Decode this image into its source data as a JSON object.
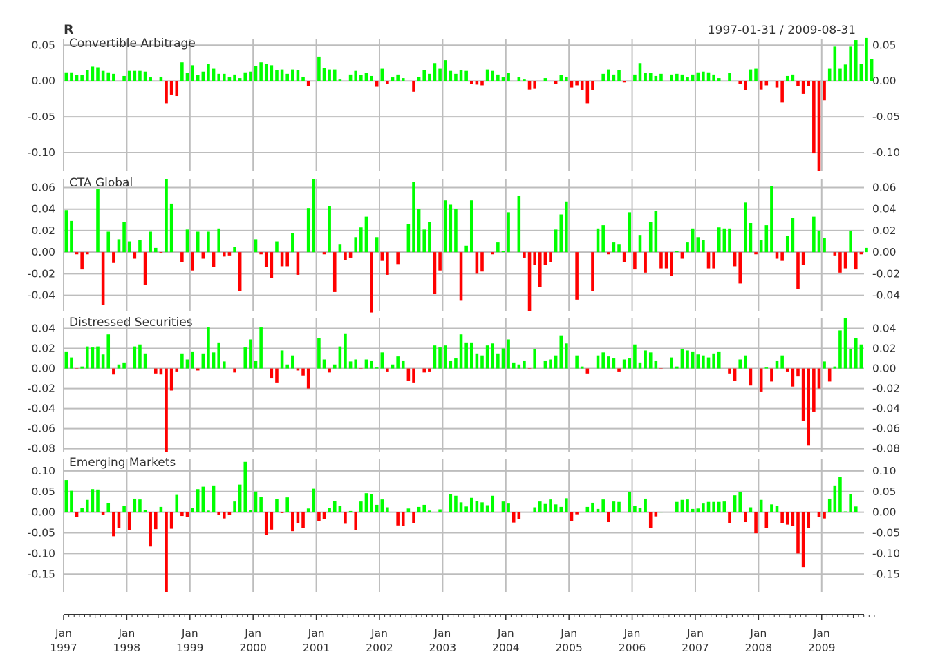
{
  "header": {
    "title": "R",
    "date_range": "1997-01-31 / 2009-08-31"
  },
  "colors": {
    "positive": "#00ff00",
    "negative": "#ff0000",
    "grid": "#bdbdbd",
    "text": "#333333"
  },
  "chart_data": {
    "type": "bar",
    "layout": "stacked-panels",
    "grid": true,
    "x_axis": {
      "ticks": [
        {
          "line1": "Jan",
          "line2": "1997"
        },
        {
          "line1": "Jan",
          "line2": "1998"
        },
        {
          "line1": "Jan",
          "line2": "1999"
        },
        {
          "line1": "Jan",
          "line2": "2000"
        },
        {
          "line1": "Jan",
          "line2": "2001"
        },
        {
          "line1": "Jan",
          "line2": "2002"
        },
        {
          "line1": "Jan",
          "line2": "2003"
        },
        {
          "line1": "Jan",
          "line2": "2004"
        },
        {
          "line1": "Jan",
          "line2": "2005"
        },
        {
          "line1": "Jan",
          "line2": "2006"
        },
        {
          "line1": "Jan",
          "line2": "2007"
        },
        {
          "line1": "Jan",
          "line2": "2008"
        },
        {
          "line1": "Jan",
          "line2": "2009"
        }
      ]
    },
    "series": [
      {
        "name": "Convertible Arbitrage",
        "ylim": [
          -0.125,
          0.058
        ],
        "yticks": [
          {
            "value": 0.05,
            "label": "0.05"
          },
          {
            "value": 0.0,
            "label": "0.00"
          },
          {
            "value": -0.05,
            "label": "-0.05"
          },
          {
            "value": -0.1,
            "label": "-0.10"
          }
        ],
        "values": [
          0.012,
          0.012,
          0.008,
          0.008,
          0.015,
          0.02,
          0.019,
          0.014,
          0.012,
          0.01,
          0.0,
          0.007,
          0.014,
          0.014,
          0.014,
          0.013,
          0.005,
          0.0,
          0.006,
          -0.031,
          -0.019,
          -0.021,
          0.026,
          0.011,
          0.022,
          0.008,
          0.013,
          0.024,
          0.017,
          0.01,
          0.01,
          0.005,
          0.009,
          0.004,
          0.012,
          0.013,
          0.021,
          0.026,
          0.024,
          0.022,
          0.015,
          0.016,
          0.01,
          0.016,
          0.015,
          0.006,
          -0.007,
          0.0,
          0.034,
          0.018,
          0.016,
          0.016,
          0.002,
          0.0,
          0.009,
          0.014,
          0.008,
          0.011,
          0.007,
          -0.008,
          0.017,
          -0.004,
          0.005,
          0.009,
          0.004,
          0.0,
          -0.015,
          0.006,
          0.015,
          0.01,
          0.025,
          0.017,
          0.029,
          0.014,
          0.01,
          0.015,
          0.014,
          -0.004,
          -0.005,
          -0.006,
          0.016,
          0.014,
          0.009,
          0.005,
          0.011,
          0.0,
          0.005,
          0.002,
          -0.012,
          -0.011,
          0.0,
          0.004,
          0.0,
          -0.004,
          0.008,
          0.006,
          -0.009,
          -0.006,
          -0.013,
          -0.031,
          -0.013,
          0.0,
          0.01,
          0.016,
          0.009,
          0.015,
          -0.002,
          0.0,
          0.009,
          0.025,
          0.011,
          0.011,
          0.007,
          0.01,
          0.0,
          0.009,
          0.01,
          0.009,
          0.005,
          0.009,
          0.012,
          0.013,
          0.012,
          0.009,
          0.004,
          0.0,
          0.011,
          0.0,
          -0.004,
          -0.013,
          0.016,
          0.017,
          -0.012,
          -0.006,
          0.0,
          -0.009,
          -0.03,
          0.007,
          0.009,
          -0.007,
          -0.018,
          -0.007,
          -0.101,
          -0.125,
          -0.027,
          0.017,
          0.048,
          0.017,
          0.023,
          0.048,
          0.057,
          0.024,
          0.06,
          0.031
        ]
      },
      {
        "name": "CTA Global",
        "ylim": [
          -0.055,
          0.068
        ],
        "yticks": [
          {
            "value": 0.06,
            "label": "0.06"
          },
          {
            "value": 0.04,
            "label": "0.04"
          },
          {
            "value": 0.02,
            "label": "0.02"
          },
          {
            "value": 0.0,
            "label": "0.00"
          },
          {
            "value": -0.02,
            "label": "-0.02"
          },
          {
            "value": -0.04,
            "label": "-0.04"
          }
        ],
        "values": [
          0.039,
          0.029,
          -0.002,
          -0.016,
          -0.002,
          0.0,
          0.059,
          -0.049,
          0.019,
          -0.01,
          0.012,
          0.028,
          0.01,
          -0.006,
          0.011,
          -0.03,
          0.019,
          0.004,
          -0.001,
          0.068,
          0.045,
          0.0,
          -0.009,
          0.021,
          -0.017,
          0.019,
          -0.006,
          0.019,
          -0.014,
          0.022,
          -0.004,
          -0.003,
          0.005,
          -0.036,
          0.0,
          0.0,
          0.012,
          -0.002,
          -0.014,
          -0.024,
          0.01,
          -0.013,
          -0.013,
          0.018,
          -0.021,
          0.0,
          0.041,
          0.068,
          0.0,
          -0.002,
          0.043,
          -0.037,
          0.007,
          -0.007,
          -0.005,
          0.014,
          0.023,
          0.033,
          -0.056,
          0.014,
          -0.008,
          -0.021,
          0.0,
          -0.011,
          0.0,
          0.026,
          0.065,
          0.04,
          0.021,
          0.028,
          -0.039,
          -0.017,
          0.048,
          0.044,
          0.04,
          -0.045,
          0.006,
          0.048,
          -0.02,
          -0.018,
          0.0,
          -0.002,
          0.009,
          0.001,
          0.037,
          0.0,
          0.052,
          -0.005,
          -0.055,
          -0.012,
          -0.032,
          -0.012,
          -0.009,
          0.021,
          0.035,
          0.047,
          0.0,
          -0.044,
          0.0,
          0.0,
          -0.036,
          0.022,
          0.025,
          -0.002,
          0.009,
          0.007,
          -0.009,
          0.037,
          -0.016,
          0.016,
          -0.019,
          0.028,
          0.038,
          -0.015,
          -0.015,
          -0.022,
          0.001,
          -0.006,
          0.009,
          0.022,
          0.014,
          0.011,
          -0.015,
          -0.015,
          0.023,
          0.022,
          0.022,
          -0.013,
          -0.029,
          0.046,
          0.027,
          -0.002,
          0.011,
          0.025,
          0.061,
          -0.006,
          -0.008,
          0.015,
          0.032,
          -0.034,
          -0.012,
          0.0,
          0.033,
          0.02,
          0.013,
          0.0,
          -0.003,
          -0.019,
          -0.015,
          0.02,
          -0.016,
          -0.002,
          0.004
        ]
      },
      {
        "name": "Distressed Securities",
        "ylim": [
          -0.083,
          0.05
        ],
        "yticks": [
          {
            "value": 0.04,
            "label": "0.04"
          },
          {
            "value": 0.02,
            "label": "0.02"
          },
          {
            "value": 0.0,
            "label": "0.00"
          },
          {
            "value": -0.02,
            "label": "-0.02"
          },
          {
            "value": -0.04,
            "label": "-0.04"
          },
          {
            "value": -0.06,
            "label": "-0.06"
          },
          {
            "value": -0.08,
            "label": "-0.08"
          }
        ],
        "values": [
          0.017,
          0.011,
          -0.001,
          0.002,
          0.022,
          0.021,
          0.022,
          0.014,
          0.034,
          -0.006,
          0.004,
          0.006,
          0.0,
          0.022,
          0.024,
          0.015,
          0.0,
          -0.005,
          -0.006,
          -0.083,
          -0.022,
          -0.003,
          0.015,
          0.009,
          0.017,
          -0.002,
          0.015,
          0.041,
          0.016,
          0.026,
          0.007,
          0.0,
          -0.004,
          0.0,
          0.021,
          0.029,
          0.008,
          0.041,
          0.0,
          -0.01,
          -0.014,
          0.018,
          0.004,
          0.013,
          -0.002,
          -0.007,
          -0.02,
          0.0,
          0.03,
          0.009,
          -0.004,
          0.004,
          0.022,
          0.035,
          0.007,
          0.009,
          -0.001,
          0.009,
          0.008,
          0.001,
          0.016,
          -0.003,
          0.004,
          0.012,
          0.008,
          -0.012,
          -0.014,
          0.0,
          -0.004,
          -0.003,
          0.023,
          0.021,
          0.023,
          0.008,
          0.01,
          0.034,
          0.026,
          0.026,
          0.015,
          0.013,
          0.023,
          0.025,
          0.015,
          0.02,
          0.029,
          0.006,
          0.004,
          0.008,
          -0.001,
          0.019,
          0.0,
          0.008,
          0.009,
          0.013,
          0.033,
          0.025,
          0.0,
          0.013,
          0.002,
          -0.005,
          0.0,
          0.013,
          0.016,
          0.012,
          0.01,
          -0.003,
          0.009,
          0.01,
          0.024,
          0.006,
          0.018,
          0.016,
          0.008,
          -0.001,
          0.0,
          0.011,
          0.002,
          0.019,
          0.018,
          0.017,
          0.014,
          0.013,
          0.011,
          0.015,
          0.017,
          0.0,
          -0.005,
          -0.012,
          0.009,
          0.013,
          -0.017,
          0.0,
          -0.023,
          0.001,
          -0.013,
          0.008,
          0.013,
          -0.003,
          -0.018,
          -0.008,
          -0.052,
          -0.077,
          -0.043,
          -0.02,
          0.007,
          -0.013,
          0.002,
          0.038,
          0.05,
          0.019,
          0.03,
          0.024
        ]
      },
      {
        "name": "Emerging Markets",
        "ylim": [
          -0.193,
          0.13
        ],
        "yticks": [
          {
            "value": 0.1,
            "label": "0.10"
          },
          {
            "value": 0.05,
            "label": "0.05"
          },
          {
            "value": 0.0,
            "label": "0.00"
          },
          {
            "value": -0.05,
            "label": "-0.05"
          },
          {
            "value": -0.1,
            "label": "-0.10"
          },
          {
            "value": -0.15,
            "label": "-0.15"
          }
        ],
        "values": [
          0.078,
          0.052,
          -0.012,
          0.01,
          0.03,
          0.056,
          0.055,
          -0.006,
          0.022,
          -0.058,
          -0.038,
          0.015,
          -0.044,
          0.033,
          0.031,
          0.005,
          -0.083,
          -0.041,
          0.013,
          -0.193,
          -0.04,
          0.042,
          -0.009,
          -0.011,
          0.011,
          0.056,
          0.062,
          0.004,
          0.065,
          -0.006,
          -0.015,
          -0.007,
          0.026,
          0.067,
          0.122,
          0.006,
          0.05,
          0.037,
          -0.055,
          -0.042,
          0.032,
          -0.002,
          0.036,
          -0.046,
          -0.026,
          -0.039,
          0.009,
          0.057,
          -0.022,
          -0.017,
          0.01,
          0.027,
          0.016,
          -0.028,
          0.003,
          -0.043,
          0.026,
          0.046,
          0.043,
          0.018,
          0.031,
          0.012,
          0.0,
          -0.032,
          -0.033,
          0.009,
          -0.026,
          0.013,
          0.018,
          0.004,
          0.0,
          0.007,
          0.0,
          0.043,
          0.04,
          0.024,
          0.014,
          0.035,
          0.027,
          0.024,
          0.017,
          0.04,
          0.0,
          0.026,
          0.021,
          -0.025,
          -0.017,
          0.0,
          0.0,
          0.012,
          0.026,
          0.02,
          0.031,
          0.019,
          0.013,
          0.034,
          -0.021,
          -0.005,
          0.0,
          0.013,
          0.023,
          0.008,
          0.031,
          -0.024,
          0.026,
          0.025,
          0.0,
          0.048,
          0.015,
          0.011,
          0.033,
          -0.039,
          -0.01,
          0.001,
          0.0,
          0.0,
          0.025,
          0.03,
          0.031,
          0.008,
          0.009,
          0.021,
          0.025,
          0.025,
          0.025,
          0.026,
          -0.027,
          0.041,
          0.048,
          -0.024,
          0.012,
          -0.051,
          0.03,
          -0.038,
          0.019,
          0.015,
          -0.026,
          -0.03,
          -0.033,
          -0.1,
          -0.133,
          -0.038,
          0.0,
          -0.011,
          -0.015,
          0.033,
          0.065,
          0.086,
          0.002,
          0.043,
          0.014
        ]
      }
    ]
  }
}
